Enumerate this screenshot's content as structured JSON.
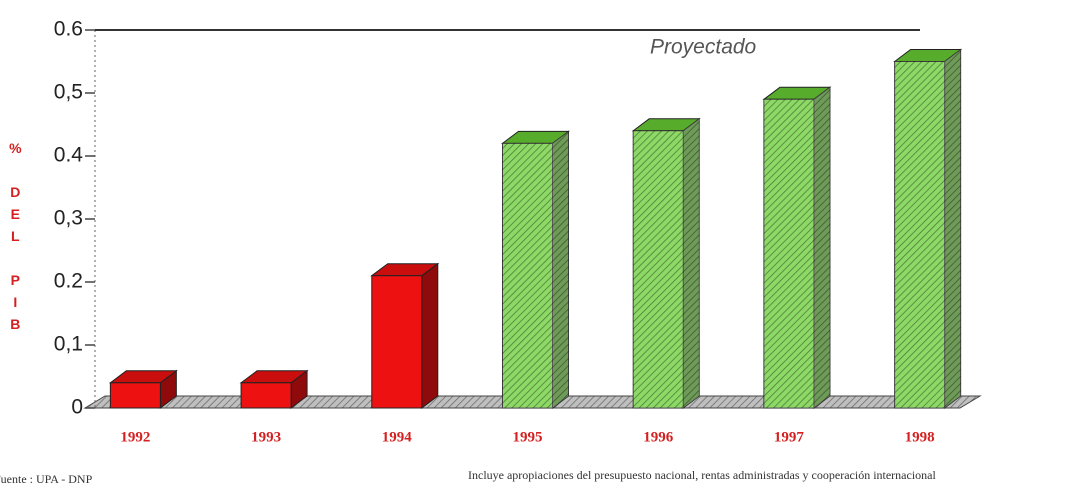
{
  "chart_data": {
    "type": "bar3d",
    "y_label": "% DEL PIB",
    "annotation": "Proyectado",
    "categories": [
      "1992",
      "1993",
      "1994",
      "1995",
      "1996",
      "1997",
      "1998"
    ],
    "values": [
      0.04,
      0.04,
      0.21,
      0.42,
      0.44,
      0.49,
      0.55
    ],
    "colors": [
      "#ee1111",
      "#ee1111",
      "#ee1111",
      "#66cc33",
      "#66cc33",
      "#66cc33",
      "#66cc33"
    ],
    "ylim": [
      0,
      0.6
    ],
    "yticks": [
      0,
      {
        "value": 0.1,
        "label": "0,1"
      },
      0.2,
      {
        "value": 0.3,
        "label": "0,3"
      },
      0.4,
      {
        "value": 0.5,
        "label": "0,5"
      },
      0.6
    ],
    "source": "Fuente : UPA - DNP",
    "note": "Incluye apropiaciones del presupuesto nacional, rentas administradas y cooperación internacional"
  }
}
